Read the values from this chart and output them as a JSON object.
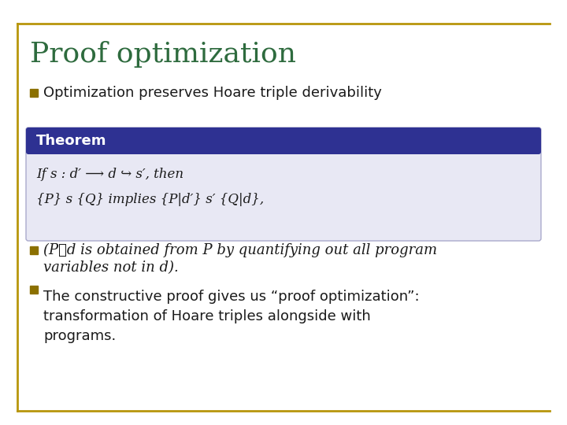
{
  "title": "Proof optimization",
  "title_color": "#2E6B3E",
  "title_fontsize": 26,
  "bg_color": "#FFFFFF",
  "border_color": "#B8960C",
  "bullet1": "Optimization preserves Hoare triple derivability",
  "theorem_header": "Theorem",
  "theorem_header_bg": "#2E3192",
  "theorem_header_color": "#FFFFFF",
  "theorem_body_bg": "#E8E8F4",
  "theorem_line1": "If s : d′ ⟶ d ↪ s′, then",
  "theorem_line2": "{P} s {Q} implies {P|d′} s′ {Q|d},",
  "bullet3": "The constructive proof gives us “proof optimization”:\ntransformation of Hoare triples alongside with\nprograms.",
  "bullet_color": "#8B7000",
  "text_color": "#1a1a1a",
  "bullet_size": 0.012
}
